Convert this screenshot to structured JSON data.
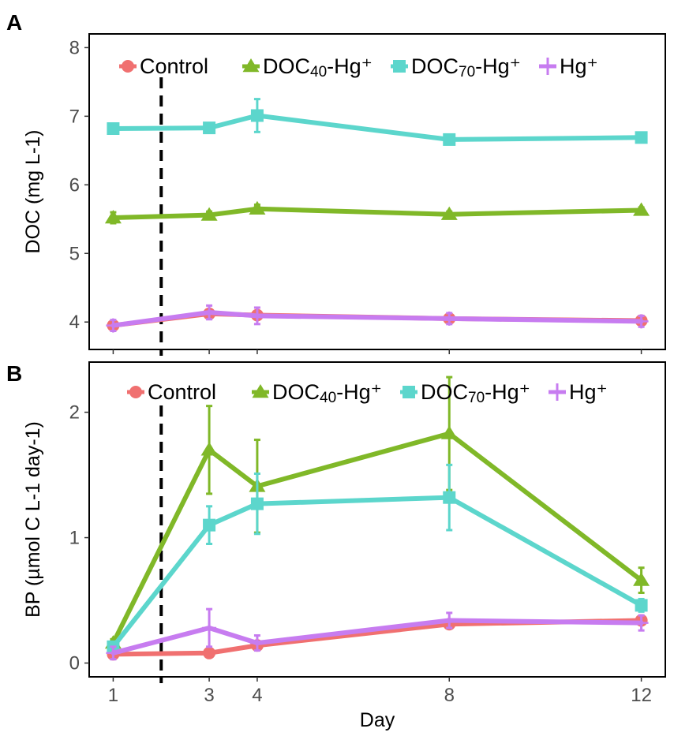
{
  "chart_data": [
    {
      "panel": "A",
      "type": "line",
      "xlabel": "",
      "ylabel": "DOC (mg L-1)",
      "xlim": [
        0.5,
        12.5
      ],
      "ylim": [
        3.6,
        8.2
      ],
      "x_ticks": [
        1,
        3,
        4,
        8,
        12
      ],
      "y_ticks": [
        4,
        5,
        6,
        7,
        8
      ],
      "y_tick_labels": [
        "4",
        "5",
        "6",
        "7",
        "8"
      ],
      "show_x_tick_labels": false,
      "vline_x": 2,
      "legend": [
        {
          "key": "control",
          "main": "Control",
          "sub": "",
          "rest": ""
        },
        {
          "key": "doc40",
          "main": "DOC",
          "sub": "40",
          "rest": "-Hg⁺"
        },
        {
          "key": "doc70",
          "main": "DOC",
          "sub": "70",
          "rest": "-Hg⁺"
        },
        {
          "key": "hg",
          "main": "Hg⁺",
          "sub": "",
          "rest": ""
        }
      ],
      "series": [
        {
          "key": "control",
          "name": "Control",
          "color": "#F07070",
          "marker": "circle",
          "x": [
            1,
            3,
            4,
            8,
            12
          ],
          "y": [
            3.95,
            4.12,
            4.1,
            4.05,
            4.02
          ],
          "err": [
            0,
            0,
            0,
            0,
            0
          ]
        },
        {
          "key": "doc40",
          "name": "DOC40-Hg+",
          "color": "#80B828",
          "marker": "triangle",
          "x": [
            1,
            3,
            4,
            8,
            12
          ],
          "y": [
            5.52,
            5.56,
            5.65,
            5.57,
            5.63
          ],
          "err": [
            0.08,
            0.05,
            0.06,
            0.04,
            0.04
          ]
        },
        {
          "key": "doc70",
          "name": "DOC70-Hg+",
          "color": "#5CD6CC",
          "marker": "square",
          "x": [
            1,
            3,
            4,
            8,
            12
          ],
          "y": [
            6.82,
            6.83,
            7.01,
            6.66,
            6.69
          ],
          "err": [
            0.05,
            0.05,
            0.24,
            0.04,
            0.04
          ]
        },
        {
          "key": "hg",
          "name": "Hg+",
          "color": "#C77CF0",
          "marker": "plus",
          "x": [
            1,
            3,
            4,
            8,
            12
          ],
          "y": [
            3.95,
            4.14,
            4.09,
            4.05,
            4.01
          ],
          "err": [
            0.08,
            0.1,
            0.12,
            0.08,
            0.08
          ]
        }
      ]
    },
    {
      "panel": "B",
      "type": "line",
      "xlabel": "Day",
      "ylabel": "BP (µmol C L-1 day-1)",
      "xlim": [
        0.5,
        12.5
      ],
      "ylim": [
        -0.11,
        2.4
      ],
      "x_ticks": [
        1,
        3,
        4,
        8,
        12
      ],
      "x_tick_labels": [
        "1",
        "3",
        "4",
        "8",
        "12"
      ],
      "y_ticks": [
        0,
        1,
        2
      ],
      "y_tick_labels": [
        "0",
        "1",
        "2"
      ],
      "show_x_tick_labels": true,
      "vline_x": 2,
      "legend": [
        {
          "key": "control",
          "main": "Control",
          "sub": "",
          "rest": ""
        },
        {
          "key": "doc40",
          "main": "DOC",
          "sub": "40",
          "rest": "-Hg⁺"
        },
        {
          "key": "doc70",
          "main": "DOC",
          "sub": "70",
          "rest": "-Hg⁺"
        },
        {
          "key": "hg",
          "main": "Hg⁺",
          "sub": "",
          "rest": ""
        }
      ],
      "series": [
        {
          "key": "control",
          "name": "Control",
          "color": "#F07070",
          "marker": "circle",
          "x": [
            1,
            3,
            4,
            8,
            12
          ],
          "y": [
            0.07,
            0.08,
            0.14,
            0.31,
            0.34
          ],
          "err": [
            0,
            0,
            0,
            0,
            0
          ]
        },
        {
          "key": "doc40",
          "name": "DOC40-Hg+",
          "color": "#80B828",
          "marker": "triangle",
          "x": [
            1,
            3,
            4,
            8,
            12
          ],
          "y": [
            0.16,
            1.7,
            1.41,
            1.83,
            0.66
          ],
          "err": [
            0.03,
            0.35,
            0.37,
            0.45,
            0.1
          ]
        },
        {
          "key": "doc70",
          "name": "DOC70-Hg+",
          "color": "#5CD6CC",
          "marker": "square",
          "x": [
            1,
            3,
            4,
            8,
            12
          ],
          "y": [
            0.13,
            1.1,
            1.27,
            1.32,
            0.46
          ],
          "err": [
            0.02,
            0.15,
            0.24,
            0.26,
            0.05
          ]
        },
        {
          "key": "hg",
          "name": "Hg+",
          "color": "#C77CF0",
          "marker": "plus",
          "x": [
            1,
            3,
            4,
            8,
            12
          ],
          "y": [
            0.08,
            0.28,
            0.16,
            0.34,
            0.32
          ],
          "err": [
            0.05,
            0.15,
            0.06,
            0.06,
            0.06
          ]
        }
      ]
    }
  ]
}
